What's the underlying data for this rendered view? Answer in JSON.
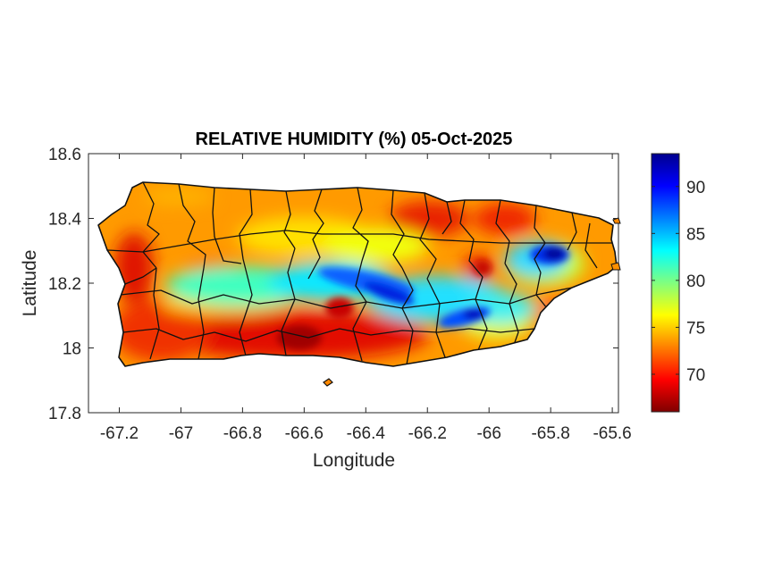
{
  "chart_data": {
    "type": "heatmap",
    "title": "RELATIVE HUMIDITY (%) 05-Oct-2025",
    "xlabel": "Longitude",
    "ylabel": "Latitude",
    "xlim": [
      -67.3,
      -65.58
    ],
    "ylim": [
      17.8,
      18.6
    ],
    "x_ticks": [
      -67.2,
      -67,
      -66.8,
      -66.6,
      -66.4,
      -66.2,
      -66,
      -65.8,
      -65.6
    ],
    "x_tick_labels": [
      "-67.2",
      "-67",
      "-66.8",
      "-66.6",
      "-66.4",
      "-66.2",
      "-66",
      "-65.8",
      "-65.6"
    ],
    "y_ticks": [
      17.8,
      18,
      18.2,
      18.4,
      18.6
    ],
    "y_tick_labels": [
      "17.8",
      "18",
      "18.2",
      "18.4",
      "18.6"
    ],
    "colorbar": {
      "min": 66,
      "max": 93.5,
      "ticks": [
        70,
        75,
        80,
        85,
        90
      ],
      "tick_labels": [
        "70",
        "75",
        "80",
        "85",
        "90"
      ],
      "colormap": "jet"
    },
    "grid": false,
    "field_notes": [
      {
        "lon": -66.38,
        "lat": 18.19,
        "value": 90
      },
      {
        "lon": -66.06,
        "lat": 18.1,
        "value": 91
      },
      {
        "lon": -65.8,
        "lat": 18.29,
        "value": 93
      },
      {
        "lon": -66.62,
        "lat": 18.03,
        "value": 66
      },
      {
        "lon": -66.48,
        "lat": 18.1,
        "value": 68
      },
      {
        "lon": -67.15,
        "lat": 18.22,
        "value": 69
      },
      {
        "lon": -66.2,
        "lat": 18.42,
        "value": 69
      },
      {
        "lon": -65.97,
        "lat": 18.41,
        "value": 70
      },
      {
        "lon": -66.7,
        "lat": 18.18,
        "value": 83
      },
      {
        "lon": -66.88,
        "lat": 18.17,
        "value": 81
      },
      {
        "lon": -66.15,
        "lat": 18.15,
        "value": 85
      }
    ]
  }
}
